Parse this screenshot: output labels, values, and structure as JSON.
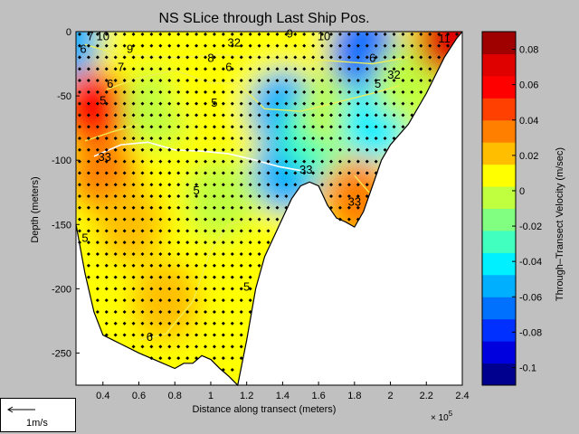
{
  "chart_data": {
    "type": "heatmap",
    "title": "NS SLice through Last Ship Pos.",
    "xlabel": "Distance along transect (meters)",
    "ylabel": "Depth (meters)",
    "x_exponent_label": "× 10",
    "x_exponent_power": "5",
    "xlim": [
      0.25,
      2.4
    ],
    "ylim": [
      -275,
      0
    ],
    "x_ticks": [
      "0.4",
      "0.6",
      "0.8",
      "1",
      "1.2",
      "1.4",
      "1.6",
      "1.8",
      "2",
      "2.2",
      "2.4"
    ],
    "x_tick_values": [
      0.4,
      0.6,
      0.8,
      1.0,
      1.2,
      1.4,
      1.6,
      1.8,
      2.0,
      2.2,
      2.4
    ],
    "y_ticks": [
      "0",
      "-50",
      "-100",
      "-150",
      "-200",
      "-250"
    ],
    "y_tick_values": [
      0,
      -50,
      -100,
      -150,
      -200,
      -250
    ],
    "colorbar": {
      "label": "Through–Transect Velocity (m/sec)",
      "range": [
        -0.11,
        0.09
      ],
      "ticks": [
        "0.08",
        "0.06",
        "0.04",
        "0.02",
        "0",
        "-0.02",
        "-0.04",
        "-0.06",
        "-0.08",
        "-0.1"
      ],
      "tick_values": [
        0.08,
        0.06,
        0.04,
        0.02,
        0,
        -0.02,
        -0.04,
        -0.06,
        -0.08,
        -0.1
      ],
      "colors": [
        "#00008f",
        "#0000df",
        "#0030ff",
        "#0070ff",
        "#00b0ff",
        "#00f0ff",
        "#40ffbf",
        "#80ff80",
        "#bfff40",
        "#ffff00",
        "#ffbf00",
        "#ff8000",
        "#ff4000",
        "#ff0000",
        "#df0000",
        "#9f0000"
      ]
    },
    "bottom_profile": [
      [
        0.25,
        -150
      ],
      [
        0.3,
        -188
      ],
      [
        0.35,
        -218
      ],
      [
        0.4,
        -236
      ],
      [
        0.5,
        -243
      ],
      [
        0.6,
        -250
      ],
      [
        0.7,
        -256
      ],
      [
        0.8,
        -262
      ],
      [
        0.85,
        -258
      ],
      [
        0.9,
        -258
      ],
      [
        0.95,
        -252
      ],
      [
        1.0,
        -255
      ],
      [
        1.05,
        -262
      ],
      [
        1.1,
        -268
      ],
      [
        1.15,
        -275
      ],
      [
        1.2,
        -240
      ],
      [
        1.25,
        -200
      ],
      [
        1.3,
        -175
      ],
      [
        1.35,
        -160
      ],
      [
        1.4,
        -145
      ],
      [
        1.45,
        -130
      ],
      [
        1.5,
        -120
      ],
      [
        1.55,
        -117
      ],
      [
        1.6,
        -120
      ],
      [
        1.65,
        -135
      ],
      [
        1.7,
        -145
      ],
      [
        1.75,
        -148
      ],
      [
        1.8,
        -152
      ],
      [
        1.85,
        -140
      ],
      [
        1.9,
        -120
      ],
      [
        1.95,
        -100
      ],
      [
        2.0,
        -88
      ],
      [
        2.1,
        -72
      ],
      [
        2.2,
        -48
      ],
      [
        2.3,
        -20
      ],
      [
        2.37,
        -5
      ],
      [
        2.4,
        0
      ]
    ],
    "velocity_blobs": [
      {
        "x": 0.35,
        "y": -60,
        "v": 0.055
      },
      {
        "x": 0.4,
        "y": -110,
        "v": 0.03
      },
      {
        "x": 0.55,
        "y": -150,
        "v": 0.02
      },
      {
        "x": 0.75,
        "y": -210,
        "v": 0.02
      },
      {
        "x": 0.7,
        "y": -60,
        "v": 0.0
      },
      {
        "x": 0.95,
        "y": -40,
        "v": 0.012
      },
      {
        "x": 1.05,
        "y": -130,
        "v": -0.01
      },
      {
        "x": 1.1,
        "y": -190,
        "v": 0.01
      },
      {
        "x": 1.3,
        "y": -80,
        "v": 0.005
      },
      {
        "x": 1.4,
        "y": -60,
        "v": -0.06
      },
      {
        "x": 1.42,
        "y": -110,
        "v": -0.05
      },
      {
        "x": 1.58,
        "y": -80,
        "v": -0.03
      },
      {
        "x": 1.7,
        "y": -60,
        "v": -0.005
      },
      {
        "x": 1.85,
        "y": -15,
        "v": -0.07
      },
      {
        "x": 1.92,
        "y": -70,
        "v": -0.04
      },
      {
        "x": 1.82,
        "y": -130,
        "v": 0.035
      },
      {
        "x": 2.1,
        "y": -40,
        "v": 0.0
      },
      {
        "x": 2.33,
        "y": -5,
        "v": 0.07
      },
      {
        "x": 0.2,
        "y": -5,
        "v": -0.06
      }
    ],
    "contour_labels": [
      {
        "x": 0.29,
        "y": -13,
        "text": "6"
      },
      {
        "x": 0.33,
        "y": -3,
        "text": "7"
      },
      {
        "x": 0.4,
        "y": -3,
        "text": "10"
      },
      {
        "x": 0.55,
        "y": -13,
        "text": "9"
      },
      {
        "x": 0.5,
        "y": -27,
        "text": "7"
      },
      {
        "x": 0.44,
        "y": -40,
        "text": "6"
      },
      {
        "x": 0.4,
        "y": -53,
        "text": "5"
      },
      {
        "x": 0.41,
        "y": -97,
        "text": "33"
      },
      {
        "x": 0.3,
        "y": -160,
        "text": "5"
      },
      {
        "x": 1.0,
        "y": -20,
        "text": "8"
      },
      {
        "x": 1.13,
        "y": -8,
        "text": "32"
      },
      {
        "x": 1.1,
        "y": -27,
        "text": "6"
      },
      {
        "x": 1.02,
        "y": -55,
        "text": "5"
      },
      {
        "x": 1.44,
        "y": -1,
        "text": "9"
      },
      {
        "x": 1.63,
        "y": -3,
        "text": "10"
      },
      {
        "x": 1.9,
        "y": -20,
        "text": "6"
      },
      {
        "x": 2.02,
        "y": -33,
        "text": "32"
      },
      {
        "x": 1.93,
        "y": -40,
        "text": "5"
      },
      {
        "x": 1.53,
        "y": -107,
        "text": "33"
      },
      {
        "x": 0.92,
        "y": -123,
        "text": "5"
      },
      {
        "x": 1.8,
        "y": -132,
        "text": "33"
      },
      {
        "x": 1.2,
        "y": -198,
        "text": "5"
      },
      {
        "x": 0.66,
        "y": -237,
        "text": "6"
      },
      {
        "x": 2.3,
        "y": -5,
        "text": "11"
      }
    ],
    "white_contour": [
      [
        0.35,
        -97
      ],
      [
        0.5,
        -88
      ],
      [
        0.65,
        -86
      ],
      [
        0.8,
        -92
      ],
      [
        0.95,
        -93
      ],
      [
        1.1,
        -95
      ],
      [
        1.25,
        -100
      ],
      [
        1.38,
        -105
      ],
      [
        1.5,
        -108
      ]
    ],
    "yellow_contours": [
      [
        [
          0.3,
          -10
        ],
        [
          0.5,
          -18
        ],
        [
          0.8,
          -20
        ],
        [
          1.05,
          -18
        ],
        [
          1.3,
          -20
        ],
        [
          1.6,
          -22
        ],
        [
          1.9,
          -25
        ],
        [
          2.1,
          -20
        ]
      ],
      [
        [
          0.42,
          -45
        ],
        [
          0.6,
          -36
        ],
        [
          0.8,
          -30
        ],
        [
          1.0,
          -40
        ],
        [
          1.15,
          -40
        ],
        [
          1.3,
          -60
        ],
        [
          1.5,
          -62
        ],
        [
          1.7,
          -55
        ],
        [
          1.9,
          -48
        ],
        [
          2.05,
          -42
        ]
      ],
      [
        [
          0.3,
          -85
        ],
        [
          0.45,
          -78
        ],
        [
          0.6,
          -72
        ]
      ],
      [
        [
          1.25,
          -145
        ],
        [
          1.1,
          -150
        ],
        [
          1.0,
          -170
        ],
        [
          0.9,
          -210
        ],
        [
          0.75,
          -235
        ],
        [
          0.6,
          -240
        ]
      ],
      [
        [
          1.8,
          -112
        ],
        [
          1.85,
          -120
        ],
        [
          1.9,
          -128
        ]
      ]
    ],
    "scale_arrow": {
      "label": "1m/s"
    }
  }
}
